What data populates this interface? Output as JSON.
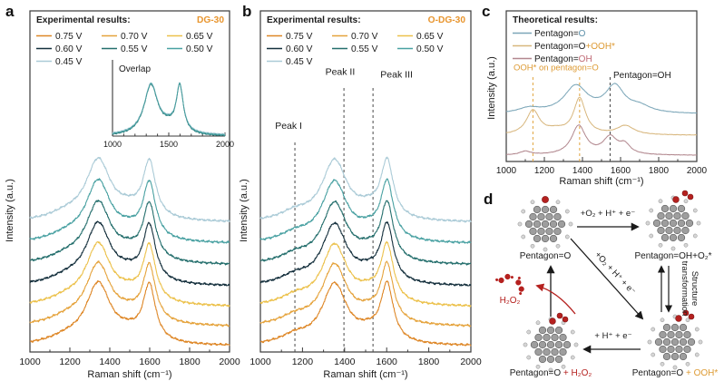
{
  "colors": {
    "sample_accent": "#E8952E",
    "dash_gray": "#4a4a4a",
    "dash_orange": "#E0A33C",
    "red": "#B5211F",
    "carbon": "#9E9E9E",
    "hydrogen": "#D6D6D6",
    "oxygen": "#B5211F"
  },
  "panels": {
    "a": {
      "letter": "a"
    },
    "b": {
      "letter": "b"
    },
    "c": {
      "letter": "c"
    },
    "d": {
      "letter": "d"
    }
  },
  "chart_data": [
    {
      "id": "panel-a-raman",
      "type": "line",
      "title": "Experimental results:",
      "sample": "DG-30",
      "xlabel": "Raman shift (cm⁻¹)",
      "ylabel": "Intensity (a.u.)",
      "xlim": [
        1000,
        2000
      ],
      "xticks": [
        1000,
        1200,
        1400,
        1600,
        1800,
        2000
      ],
      "ylim": [
        0,
        12
      ],
      "grid": false,
      "legend_position": "top-inside",
      "legend_order": [
        "0.75 V",
        "0.70 V",
        "0.65 V",
        "0.60 V",
        "0.55 V",
        "0.50 V",
        "0.45 V"
      ],
      "components": [
        [
          1342,
          75,
          2.1
        ],
        [
          1598,
          38,
          1.95
        ],
        [
          1185,
          110,
          0.22
        ],
        [
          1495,
          80,
          0.3
        ]
      ],
      "noise": 0.05,
      "peak_positions": {
        "D_band": 1342,
        "G_band": 1598
      },
      "series": [
        {
          "name": "0.45 V",
          "color": "#ABCBD7",
          "offset": 4.55
        },
        {
          "name": "0.50 V",
          "color": "#49A1A2",
          "offset": 3.8
        },
        {
          "name": "0.55 V",
          "color": "#256F6D",
          "offset": 3.05
        },
        {
          "name": "0.60 V",
          "color": "#15303D",
          "offset": 2.3
        },
        {
          "name": "0.65 V",
          "color": "#ECC14B",
          "offset": 1.58
        },
        {
          "name": "0.70 V",
          "color": "#E5A33C",
          "offset": 0.88
        },
        {
          "name": "0.75 V",
          "color": "#DE8727",
          "offset": 0.2
        }
      ],
      "annotations": [],
      "dashed_lines": []
    },
    {
      "id": "panel-a-inset-overlap",
      "type": "line",
      "title": "Overlap",
      "xlim": [
        1000,
        2000
      ],
      "xticks": [
        1000,
        1500,
        2000
      ],
      "ylim": [
        0,
        3.2
      ],
      "grid": false,
      "components": [
        [
          1342,
          75,
          2.1
        ],
        [
          1598,
          38,
          1.95
        ],
        [
          1495,
          80,
          0.25
        ]
      ],
      "noise": 0.04,
      "series": [
        {
          "name": "0.45 V",
          "color": "#ABCBD7",
          "offset": 0.03
        },
        {
          "name": "0.55 V",
          "color": "#256F6D",
          "offset": -0.02
        },
        {
          "name": "0.50 V",
          "color": "#49A1A2",
          "offset": 0.0
        }
      ],
      "annotations": [],
      "dashed_lines": []
    },
    {
      "id": "panel-b-raman",
      "type": "line",
      "title": "Experimental results:",
      "sample": "O-DG-30",
      "xlabel": "Raman shift (cm⁻¹)",
      "ylabel": "Intensity (a.u.)",
      "xlim": [
        1000,
        2000
      ],
      "xticks": [
        1000,
        1200,
        1400,
        1600,
        1800,
        2000
      ],
      "ylim": [
        0,
        12
      ],
      "grid": false,
      "legend_position": "top-inside",
      "legend_order": [
        "0.75 V",
        "0.70 V",
        "0.65 V",
        "0.60 V",
        "0.55 V",
        "0.50 V",
        "0.45 V"
      ],
      "components": [
        [
          1352,
          72,
          2.1
        ],
        [
          1602,
          36,
          1.98
        ],
        [
          1165,
          85,
          0.28
        ],
        [
          1515,
          70,
          0.33
        ]
      ],
      "noise": 0.05,
      "peak_positions": {
        "peak_I": 1164,
        "peak_II": 1397,
        "peak_III": 1535
      },
      "series": [
        {
          "name": "0.45 V",
          "color": "#ABCBD7",
          "offset": 4.55
        },
        {
          "name": "0.50 V",
          "color": "#49A1A2",
          "offset": 3.8
        },
        {
          "name": "0.55 V",
          "color": "#256F6D",
          "offset": 3.05
        },
        {
          "name": "0.60 V",
          "color": "#15303D",
          "offset": 2.3
        },
        {
          "name": "0.65 V",
          "color": "#ECC14B",
          "offset": 1.58
        },
        {
          "name": "0.70 V",
          "color": "#E5A33C",
          "offset": 0.88
        },
        {
          "name": "0.75 V",
          "color": "#DE8727",
          "offset": 0.2
        }
      ],
      "annotations": [
        {
          "text": "Peak I",
          "x": 1134,
          "y": 7.85,
          "color": "#1a1a1a",
          "anchor": "middle",
          "size": 10.5
        },
        {
          "text": "Peak II",
          "x": 1379,
          "y": 9.75,
          "color": "#1a1a1a",
          "anchor": "middle",
          "size": 10.5
        },
        {
          "text": "Peak III",
          "x": 1647,
          "y": 9.65,
          "color": "#1a1a1a",
          "anchor": "middle",
          "size": 10.5
        }
      ],
      "dashed_lines": [
        {
          "x": 1164,
          "y0": 0,
          "y1": 7.45,
          "color": "#4a4a4a"
        },
        {
          "x": 1397,
          "y0": 0,
          "y1": 9.3,
          "color": "#4a4a4a"
        },
        {
          "x": 1535,
          "y0": 0,
          "y1": 9.3,
          "color": "#4a4a4a"
        }
      ]
    },
    {
      "id": "panel-c-theoretical",
      "type": "line",
      "legend_title": "Theoretical results:",
      "xlabel": "Raman shift (cm⁻¹)",
      "ylabel": "Intensity (a.u.)",
      "xlim": [
        1000,
        2000
      ],
      "xticks": [
        1000,
        1200,
        1400,
        1600,
        1800,
        2000
      ],
      "ylim": [
        0,
        7.5
      ],
      "grid": false,
      "noise": 0.015,
      "series": [
        {
          "name": "Pentagon=O",
          "color": "#7BA6B8",
          "offset": 2.35,
          "components": [
            [
              1120,
              70,
              0.25
            ],
            [
              1365,
              75,
              1.35
            ],
            [
              1570,
              60,
              1.3
            ],
            [
              1700,
              70,
              0.3
            ]
          ],
          "label_parts": [
            {
              "t": "Pentagon=",
              "c": "#1a1a1a"
            },
            {
              "t": "O",
              "c": "#5B8FA8"
            }
          ]
        },
        {
          "name": "Pentagon=O+OOH*",
          "color": "#D8B77E",
          "offset": 1.3,
          "components": [
            [
              1140,
              42,
              1.2
            ],
            [
              1260,
              60,
              0.2
            ],
            [
              1385,
              38,
              1.8
            ],
            [
              1625,
              55,
              0.45
            ]
          ],
          "label_parts": [
            {
              "t": "Pentagon=O",
              "c": "#1a1a1a"
            },
            {
              "t": "+OOH*",
              "c": "#DD9A33"
            }
          ]
        },
        {
          "name": "Pentagon=OH",
          "color": "#B2888F",
          "offset": 0.3,
          "components": [
            [
              1100,
              35,
              0.18
            ],
            [
              1380,
              45,
              1.45
            ],
            [
              1545,
              45,
              0.85
            ],
            [
              1622,
              35,
              0.45
            ]
          ],
          "label_parts": [
            {
              "t": "Pentagon=",
              "c": "#1a1a1a"
            },
            {
              "t": "OH",
              "c": "#C06A75"
            }
          ]
        }
      ],
      "annotations": [
        {
          "text": "OOH* on pentagon=O",
          "x": 1038,
          "y": 4.55,
          "color": "#DD9A33",
          "anchor": "start",
          "size": 9.5
        },
        {
          "text": "Pentagon=OH",
          "x": 1562,
          "y": 4.15,
          "color": "#1a1a1a",
          "anchor": "start",
          "size": 10
        }
      ],
      "dashed_lines": [
        {
          "x": 1140,
          "y0": 0,
          "y1": 4.2,
          "color": "#E0A33C"
        },
        {
          "x": 1385,
          "y0": 0,
          "y1": 4.2,
          "color": "#E0A33C"
        },
        {
          "x": 1545,
          "y0": 0,
          "y1": 4.25,
          "color": "#444444"
        }
      ]
    }
  ],
  "scheme": {
    "nodes": [
      {
        "id": "pentagon-o",
        "decor": "o",
        "label_parts": [
          {
            "t": "Pentagon=O",
            "c": "#1a1a1a"
          }
        ]
      },
      {
        "id": "pentagon-oh-o2",
        "decor": "oh_o2",
        "label_parts": [
          {
            "t": "Pentagon=OH+O₂*",
            "c": "#1a1a1a"
          }
        ]
      },
      {
        "id": "pentagon-o-ooh",
        "decor": "ooh",
        "label_parts": [
          {
            "t": "Pentagon=O ",
            "c": "#1a1a1a"
          },
          {
            "t": "+ OOH*",
            "c": "#DD9A33"
          }
        ]
      },
      {
        "id": "pentagon-o-h2o2",
        "decor": "ooh2",
        "label_parts": [
          {
            "t": "Pentagon=O ",
            "c": "#1a1a1a"
          },
          {
            "t": "+ H₂O₂",
            "c": "#B5211F"
          }
        ]
      }
    ],
    "labels": {
      "top_arrow": "+O₂ + H⁺ + e⁻",
      "diag_arrow": "+O₂ + H⁺ + e⁻",
      "bottom_arrow": "+ H⁺ + e⁻",
      "right_arrow_line1": "Structure",
      "right_arrow_line2": "transformation",
      "h2o2": "H₂O₂"
    }
  }
}
